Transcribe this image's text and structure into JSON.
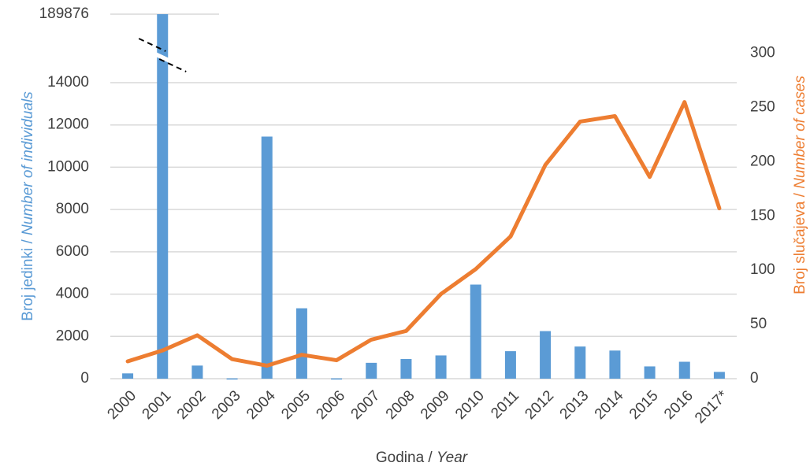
{
  "chart_data": {
    "type": "bar-line",
    "categories": [
      "2000",
      "2001",
      "2002",
      "2003",
      "2004",
      "2005",
      "2006",
      "2007",
      "2008",
      "2009",
      "2010",
      "2011",
      "2012",
      "2013",
      "2014",
      "2015",
      "2016",
      "2017*"
    ],
    "series": [
      {
        "name": "Broj jedinki / Number of individuals",
        "type": "bar",
        "color": "#5b9bd5",
        "axis": "y",
        "values": [
          250,
          189876,
          620,
          15,
          11450,
          3330,
          15,
          750,
          930,
          1100,
          4450,
          1300,
          2250,
          1520,
          1330,
          580,
          800,
          320
        ]
      },
      {
        "name": "Broj slučajeva / Number of cases",
        "type": "line",
        "color": "#ed7d31",
        "axis": "y2",
        "values": [
          16,
          26,
          40,
          18,
          12,
          22,
          17,
          36,
          44,
          78,
          101,
          131,
          197,
          237,
          242,
          186,
          255,
          157
        ]
      }
    ],
    "xlabel": [
      "Godina / ",
      "Year"
    ],
    "ylabel": [
      "Broj jedinki / ",
      "Number of individuals"
    ],
    "y2label": [
      "Broj slučajeva / ",
      "Number of cases"
    ],
    "ylim": [
      0,
      189876
    ],
    "yticks": [
      0,
      2000,
      4000,
      6000,
      8000,
      10000,
      12000,
      14000,
      189876
    ],
    "y2lim": [
      0,
      336
    ],
    "y2ticks": [
      0,
      50,
      100,
      150,
      200,
      250,
      300
    ],
    "axis_break": true,
    "grid": true
  }
}
